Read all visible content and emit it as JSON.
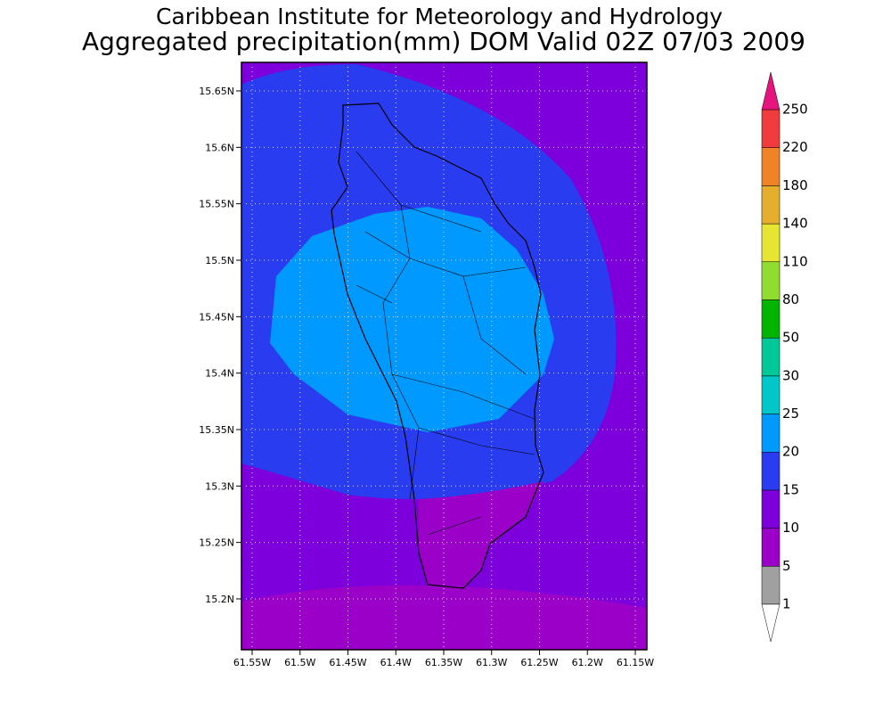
{
  "title": "Caribbean Institute for Meteorology and Hydrology",
  "subtitle": "Aggregated precipitation(mm) DOM Valid 02Z 07/03 2009",
  "lon_ticks": [
    "61.55W",
    "61.5W",
    "61.45W",
    "61.4W",
    "61.35W",
    "61.3W",
    "61.25W",
    "61.2W",
    "61.15W"
  ],
  "lat_ticks": [
    "15.65N",
    "15.6N",
    "15.55N",
    "15.5N",
    "15.45N",
    "15.4N",
    "15.35N",
    "15.3N",
    "15.25N",
    "15.2N"
  ],
  "colorbar": {
    "levels": [
      1,
      5,
      10,
      15,
      20,
      25,
      30,
      50,
      80,
      110,
      140,
      180,
      220,
      250
    ],
    "colors": [
      "#a0a0a0",
      "#9a00c8",
      "#7d00dc",
      "#2a3cf0",
      "#0099ff",
      "#00c8c8",
      "#00c896",
      "#00b400",
      "#90dd30",
      "#e6e632",
      "#e6ae2d",
      "#f08228",
      "#f03c3c"
    ],
    "below_color": "#ffffff",
    "above_color": "#e6147d"
  }
}
